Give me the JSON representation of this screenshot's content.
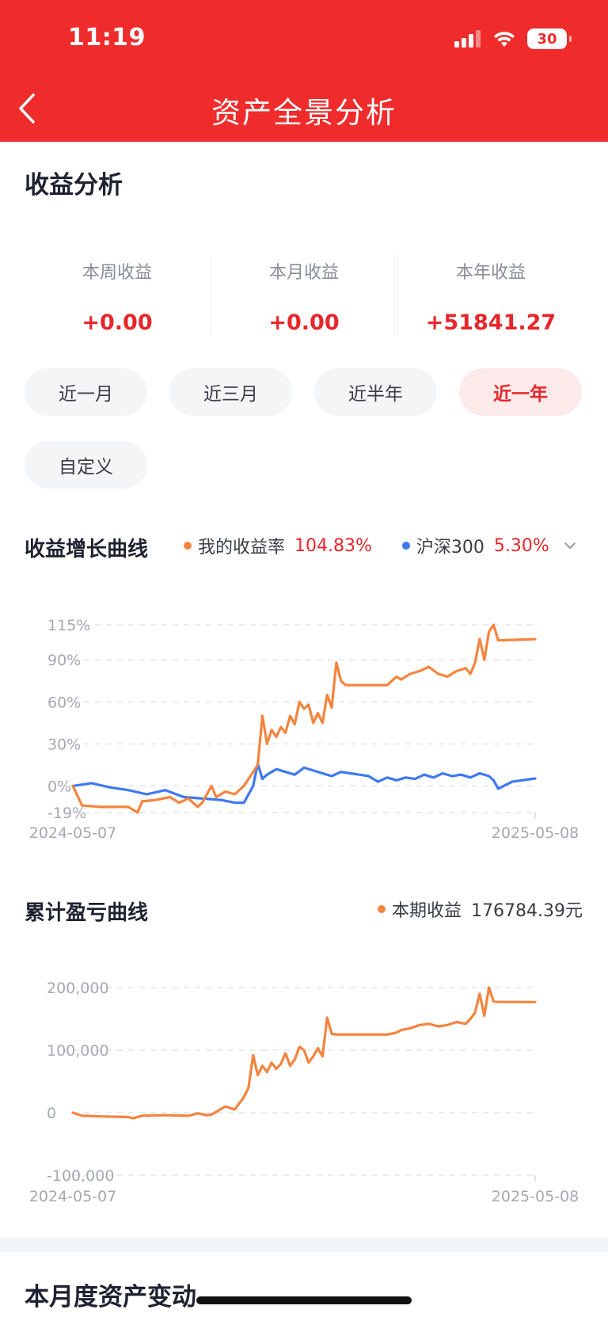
{
  "status_bar": {
    "time": "11:19",
    "battery": "30"
  },
  "header": {
    "title": "资产全景分析"
  },
  "income": {
    "title": "收益分析",
    "stats": [
      {
        "label": "本周收益",
        "value": "+0.00"
      },
      {
        "label": "本月收益",
        "value": "+0.00"
      },
      {
        "label": "本年收益",
        "value": "+51841.27"
      }
    ]
  },
  "tabs": [
    {
      "label": "近一月",
      "active": false
    },
    {
      "label": "近三月",
      "active": false
    },
    {
      "label": "近半年",
      "active": false
    },
    {
      "label": "近一年",
      "active": true
    },
    {
      "label": "自定义",
      "active": false
    }
  ],
  "colors": {
    "accent": "#e8262b",
    "header_bg": "#ef2b2b",
    "orange_series": "#f5843e",
    "blue_series": "#3d79f2"
  },
  "growth_section": {
    "title": "收益增长曲线",
    "legend": [
      {
        "name": "我的收益率",
        "value": "104.83%",
        "color": "#f5843e"
      },
      {
        "name": "沪深300",
        "value": "5.30%",
        "color": "#3d79f2"
      }
    ]
  },
  "pnl_section": {
    "title": "累计盈亏曲线",
    "legend": {
      "name": "本期收益",
      "value": "176784.39元",
      "color": "#f5843e"
    }
  },
  "monthly_section": {
    "title": "本月度资产变动"
  },
  "chart_data": [
    {
      "type": "line",
      "ytick_labels": [
        "115%",
        "90%",
        "60%",
        "30%",
        "0%",
        "-19%"
      ],
      "ylim": [
        -19,
        115
      ],
      "xtick_labels": [
        "2024-05-07",
        "2025-05-08"
      ],
      "xlim": [
        0,
        1
      ],
      "grid": true,
      "series": [
        {
          "name": "我的收益率",
          "color": "#f5843e",
          "x": [
            0,
            0.02,
            0.06,
            0.12,
            0.14,
            0.15,
            0.18,
            0.21,
            0.23,
            0.25,
            0.27,
            0.28,
            0.3,
            0.31,
            0.33,
            0.35,
            0.37,
            0.38,
            0.4,
            0.41,
            0.42,
            0.43,
            0.44,
            0.45,
            0.46,
            0.47,
            0.48,
            0.49,
            0.5,
            0.51,
            0.52,
            0.53,
            0.54,
            0.55,
            0.56,
            0.57,
            0.58,
            0.59,
            0.6,
            0.61,
            0.62,
            0.63,
            0.65,
            0.68,
            0.7,
            0.71,
            0.73,
            0.75,
            0.77,
            0.79,
            0.81,
            0.83,
            0.85,
            0.86,
            0.87,
            0.88,
            0.89,
            0.9,
            0.91,
            0.92,
            0.93,
            1.0
          ],
          "y": [
            0,
            -14,
            -15,
            -15,
            -19,
            -11,
            -10,
            -8,
            -12,
            -9,
            -15,
            -12,
            0,
            -8,
            -4,
            -6,
            0,
            5,
            15,
            50,
            30,
            40,
            35,
            42,
            38,
            50,
            44,
            60,
            55,
            58,
            45,
            52,
            45,
            65,
            56,
            88,
            75,
            72,
            72,
            72,
            72,
            72,
            72,
            72,
            78,
            76,
            80,
            82,
            85,
            80,
            78,
            82,
            84,
            80,
            88,
            105,
            90,
            110,
            115,
            104,
            104,
            104.83
          ]
        },
        {
          "name": "沪深300",
          "color": "#3d79f2",
          "x": [
            0,
            0.04,
            0.08,
            0.12,
            0.16,
            0.2,
            0.24,
            0.28,
            0.32,
            0.35,
            0.37,
            0.39,
            0.4,
            0.41,
            0.42,
            0.44,
            0.46,
            0.48,
            0.5,
            0.52,
            0.54,
            0.56,
            0.58,
            0.6,
            0.62,
            0.64,
            0.66,
            0.68,
            0.7,
            0.72,
            0.74,
            0.76,
            0.78,
            0.8,
            0.82,
            0.84,
            0.86,
            0.88,
            0.9,
            0.91,
            0.92,
            0.95,
            1.0
          ],
          "y": [
            0,
            2,
            -1,
            -3,
            -6,
            -3,
            -8,
            -9,
            -10,
            -12,
            -12,
            0,
            16,
            5,
            8,
            12,
            10,
            8,
            13,
            11,
            9,
            7,
            10,
            9,
            8,
            7,
            3,
            6,
            4,
            6,
            5,
            8,
            6,
            9,
            7,
            8,
            6,
            9,
            7,
            4,
            -2,
            3,
            5.3
          ]
        }
      ]
    },
    {
      "type": "line",
      "ytick_labels": [
        "200,000",
        "100,000",
        "0",
        "-100,000"
      ],
      "ylim": [
        -100000,
        200000
      ],
      "xtick_labels": [
        "2024-05-07",
        "2025-05-08"
      ],
      "xlim": [
        0,
        1
      ],
      "grid": true,
      "series": [
        {
          "name": "本期收益",
          "color": "#f5843e",
          "x": [
            0,
            0.02,
            0.06,
            0.12,
            0.13,
            0.15,
            0.2,
            0.25,
            0.27,
            0.29,
            0.3,
            0.33,
            0.35,
            0.37,
            0.38,
            0.39,
            0.4,
            0.41,
            0.42,
            0.43,
            0.44,
            0.45,
            0.46,
            0.47,
            0.48,
            0.49,
            0.5,
            0.51,
            0.52,
            0.53,
            0.54,
            0.55,
            0.56,
            0.57,
            0.58,
            0.6,
            0.63,
            0.65,
            0.68,
            0.7,
            0.71,
            0.73,
            0.75,
            0.77,
            0.79,
            0.81,
            0.83,
            0.85,
            0.86,
            0.87,
            0.88,
            0.89,
            0.9,
            0.91,
            0.92,
            0.93,
            1.0
          ],
          "y": [
            0,
            -5000,
            -6000,
            -7000,
            -9000,
            -5000,
            -4000,
            -5000,
            -1000,
            -4000,
            -3000,
            10000,
            5000,
            25000,
            40000,
            92000,
            60000,
            75000,
            65000,
            80000,
            70000,
            78000,
            95000,
            75000,
            85000,
            105000,
            100000,
            80000,
            90000,
            103000,
            90000,
            152000,
            126000,
            125000,
            125000,
            125000,
            125000,
            125000,
            125000,
            128000,
            132000,
            135000,
            140000,
            142000,
            138000,
            140000,
            145000,
            142000,
            150000,
            160000,
            190000,
            155000,
            200000,
            178000,
            177000,
            177000,
            176784
          ]
        }
      ]
    }
  ]
}
